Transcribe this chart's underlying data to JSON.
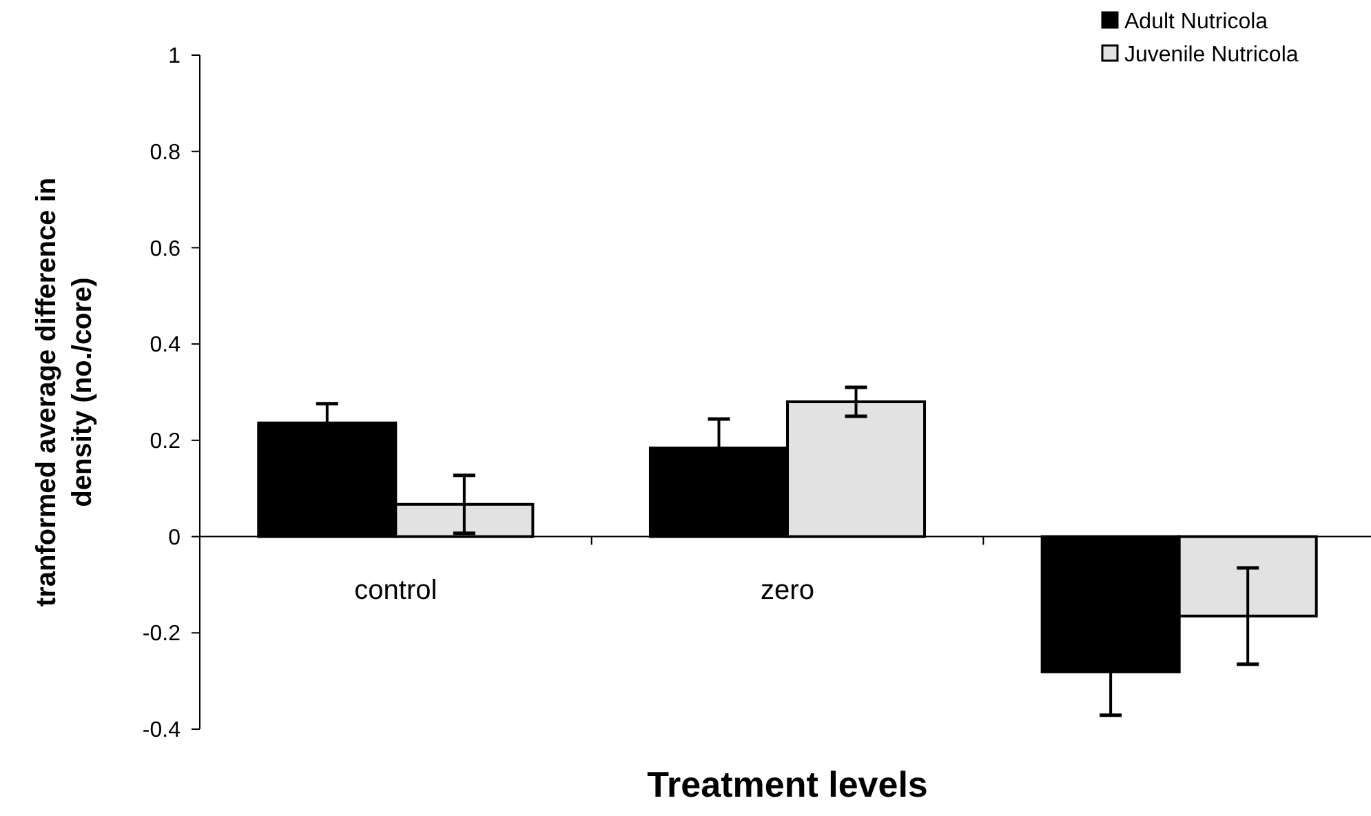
{
  "chart_data": {
    "type": "bar",
    "xlabel": "Treatment levels",
    "ylabel": "tranformed average difference in density (no./core)",
    "categories": [
      "control",
      "zero",
      null
    ],
    "series": [
      {
        "name": "Adult Nutricola",
        "color": "#000000",
        "values": [
          0.236,
          0.184,
          -0.281
        ],
        "errors": [
          0.04,
          0.06,
          0.09
        ]
      },
      {
        "name": "Juvenile Nutricola",
        "color": "#e2e2e2",
        "values": [
          0.067,
          0.28,
          -0.165
        ],
        "errors": [
          0.06,
          0.03,
          0.1
        ]
      }
    ],
    "ylim": [
      -0.4,
      1
    ],
    "yticks": [
      {
        "value": -0.4,
        "label": "-0.4"
      },
      {
        "value": -0.2,
        "label": "-0.2"
      },
      0,
      {
        "value": 0.2,
        "label": "0.2"
      },
      {
        "value": 0.4,
        "label": "0.4"
      },
      {
        "value": 0.6,
        "label": "0.6"
      },
      {
        "value": 0.8,
        "label": "0.8"
      },
      1
    ],
    "legend": "top right",
    "grid": false
  }
}
